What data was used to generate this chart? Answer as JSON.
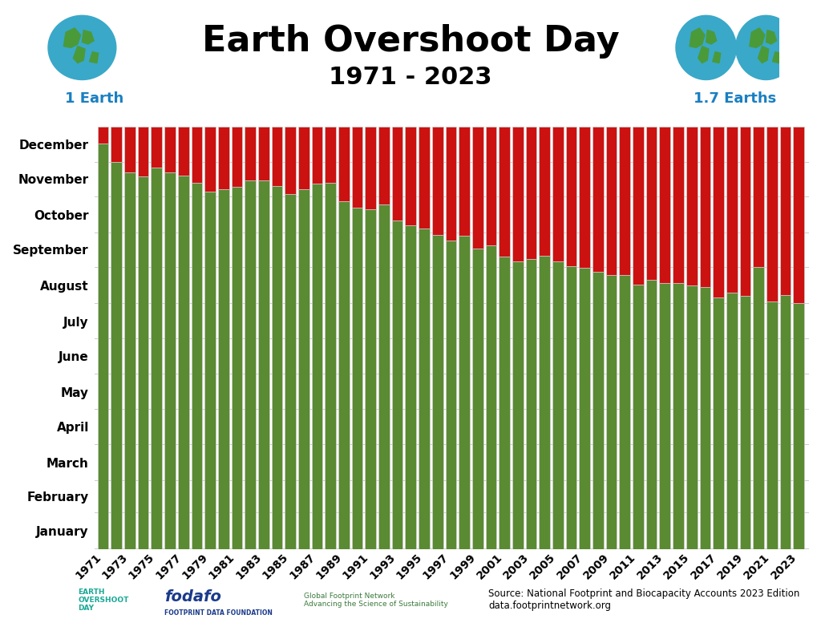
{
  "title_line1": "Earth Overshoot Day",
  "title_line2": "1971 - 2023",
  "label_left": "1 Earth",
  "label_right": "1.7 Earths",
  "source_text": "Source: National Footprint and Biocapacity Accounts 2023 Edition\ndata.footprintnetwork.org",
  "green_color": "#5a8a32",
  "red_color": "#cc1111",
  "bar_edge_color": "#d0d0d0",
  "background_color": "#ffffff",
  "total_days": 365,
  "years": [
    1971,
    1972,
    1973,
    1974,
    1975,
    1976,
    1977,
    1978,
    1979,
    1980,
    1981,
    1982,
    1983,
    1984,
    1985,
    1986,
    1987,
    1988,
    1989,
    1990,
    1991,
    1992,
    1993,
    1994,
    1995,
    1996,
    1997,
    1998,
    1999,
    2000,
    2001,
    2002,
    2003,
    2004,
    2005,
    2006,
    2007,
    2008,
    2009,
    2010,
    2011,
    2012,
    2013,
    2014,
    2015,
    2016,
    2017,
    2018,
    2019,
    2020,
    2021,
    2022,
    2023
  ],
  "overshoot_day": [
    351,
    335,
    326,
    322,
    330,
    326,
    323,
    317,
    309,
    311,
    313,
    319,
    319,
    314,
    307,
    311,
    316,
    317,
    301,
    295,
    294,
    298,
    284,
    280,
    277,
    272,
    267,
    271,
    260,
    263,
    253,
    249,
    251,
    254,
    249,
    245,
    243,
    240,
    237,
    237,
    229,
    233,
    230,
    230,
    228,
    227,
    218,
    222,
    219,
    244,
    214,
    220,
    213
  ],
  "month_labels": [
    "January",
    "February",
    "March",
    "April",
    "May",
    "June",
    "July",
    "August",
    "September",
    "October",
    "November",
    "December"
  ],
  "month_starts": [
    1,
    32,
    60,
    91,
    121,
    152,
    182,
    213,
    244,
    274,
    305,
    335
  ],
  "month_mids": [
    16,
    46,
    75,
    106,
    136,
    167,
    197,
    228,
    259,
    289,
    320,
    350
  ],
  "x_tick_years": [
    1971,
    1973,
    1975,
    1977,
    1979,
    1981,
    1983,
    1985,
    1987,
    1989,
    1991,
    1993,
    1995,
    1997,
    1999,
    2001,
    2003,
    2005,
    2007,
    2009,
    2011,
    2013,
    2015,
    2017,
    2019,
    2021,
    2023
  ],
  "title_fontsize": 32,
  "subtitle_fontsize": 22,
  "label_fontsize": 13,
  "tick_fontsize": 10,
  "ytick_fontsize": 11
}
